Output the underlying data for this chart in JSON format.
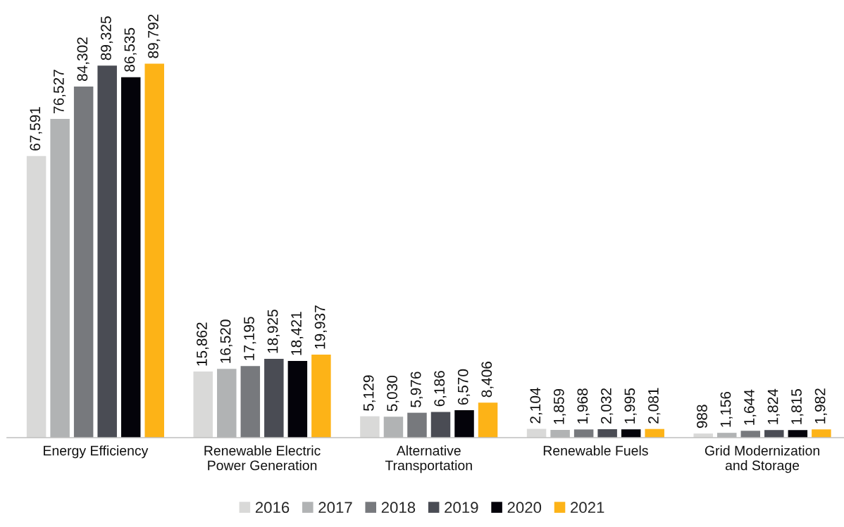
{
  "chart_data": {
    "type": "bar",
    "categories": [
      "Energy Efficiency",
      "Renewable Electric\nPower Generation",
      "Alternative\nTransportation",
      "Renewable Fuels",
      "Grid Modernization\nand Storage"
    ],
    "series": [
      {
        "name": "2016",
        "color": "#d9d9d8",
        "values": [
          67591,
          15862,
          5129,
          2104,
          988
        ],
        "value_labels": [
          "67,591",
          "15,862",
          "5,129",
          "2,104",
          "988"
        ]
      },
      {
        "name": "2017",
        "color": "#b1b3b4",
        "values": [
          76527,
          16520,
          5030,
          1859,
          1156
        ],
        "value_labels": [
          "76,527",
          "16,520",
          "5,030",
          "1,859",
          "1,156"
        ]
      },
      {
        "name": "2018",
        "color": "#77797d",
        "values": [
          84302,
          17195,
          5976,
          1968,
          1644
        ],
        "value_labels": [
          "84,302",
          "17,195",
          "5,976",
          "1,968",
          "1,644"
        ]
      },
      {
        "name": "2019",
        "color": "#4a4c54",
        "values": [
          89325,
          18925,
          6186,
          2032,
          1824
        ],
        "value_labels": [
          "89,325",
          "18,925",
          "6,186",
          "2,032",
          "1,824"
        ]
      },
      {
        "name": "2020",
        "color": "#04030a",
        "values": [
          86535,
          18421,
          6570,
          1995,
          1815
        ],
        "value_labels": [
          "86,535",
          "18,421",
          "6,570",
          "1,995",
          "1,815"
        ]
      },
      {
        "name": "2021",
        "color": "#fdb317",
        "values": [
          89792,
          19937,
          8406,
          2081,
          1982
        ],
        "value_labels": [
          "89,792",
          "19,937",
          "8,406",
          "2,081",
          "1,982"
        ]
      }
    ],
    "legend": "bottom"
  }
}
